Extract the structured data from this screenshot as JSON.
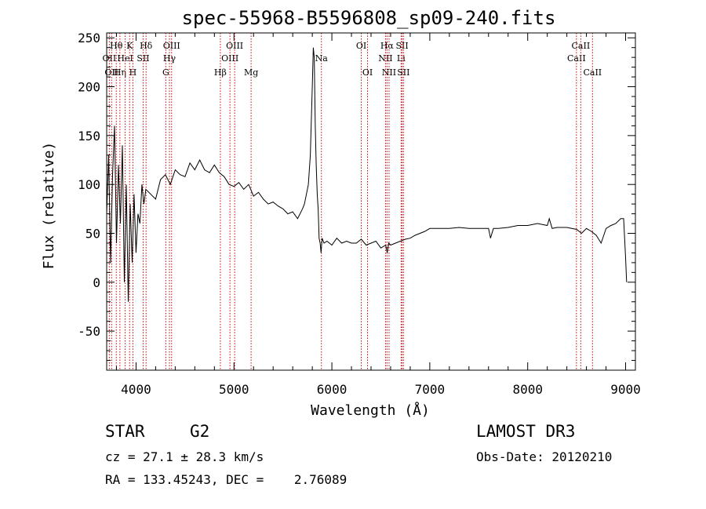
{
  "chart_data": {
    "type": "line",
    "title": "spec-55968-B5596808_sp09-240.fits",
    "xlabel": "Wavelength (Å)",
    "ylabel": "Flux (relative)",
    "xlim": [
      3700,
      9100
    ],
    "ylim": [
      -90,
      255
    ],
    "xticks": [
      4000,
      5000,
      6000,
      7000,
      8000,
      9000
    ],
    "yticks": [
      -50,
      0,
      50,
      100,
      150,
      200,
      250
    ],
    "grid": false,
    "legend": "none",
    "line_color": "#000000",
    "marker_color": "#cc0000",
    "series": [
      {
        "x": [
          3700,
          3720,
          3740,
          3760,
          3780,
          3800,
          3820,
          3840,
          3860,
          3880,
          3900,
          3920,
          3940,
          3960,
          3980,
          4000,
          4020,
          4040,
          4060,
          4080,
          4100,
          4150,
          4200,
          4250,
          4300,
          4350,
          4400,
          4450,
          4500,
          4550,
          4600,
          4650,
          4700,
          4750,
          4800,
          4850,
          4900,
          4950,
          5000,
          5050,
          5100,
          5150,
          5200,
          5250,
          5300,
          5350,
          5400,
          5450,
          5500,
          5550,
          5600,
          5650,
          5700,
          5720,
          5740,
          5760,
          5780,
          5800,
          5810,
          5820,
          5830,
          5840,
          5850,
          5860,
          5870,
          5880,
          5890,
          5900,
          5920,
          5950,
          6000,
          6050,
          6100,
          6150,
          6200,
          6250,
          6300,
          6350,
          6400,
          6450,
          6500,
          6550,
          6565,
          6580,
          6600,
          6650,
          6700,
          6750,
          6800,
          6850,
          6900,
          6950,
          7000,
          7100,
          7200,
          7300,
          7400,
          7500,
          7600,
          7620,
          7650,
          7700,
          7800,
          7900,
          8000,
          8100,
          8200,
          8220,
          8250,
          8300,
          8400,
          8500,
          8550,
          8600,
          8650,
          8700,
          8750,
          8800,
          8850,
          8900,
          8950,
          8980,
          9000,
          9010
        ],
        "y": [
          70,
          130,
          20,
          110,
          160,
          40,
          120,
          60,
          140,
          0,
          100,
          -20,
          80,
          20,
          90,
          30,
          70,
          60,
          100,
          80,
          95,
          90,
          85,
          105,
          110,
          100,
          115,
          110,
          108,
          122,
          115,
          125,
          115,
          112,
          120,
          112,
          108,
          100,
          98,
          102,
          95,
          100,
          88,
          92,
          85,
          80,
          82,
          78,
          75,
          70,
          72,
          65,
          75,
          80,
          90,
          100,
          130,
          200,
          240,
          230,
          160,
          120,
          90,
          75,
          45,
          40,
          30,
          45,
          40,
          42,
          38,
          45,
          40,
          42,
          40,
          40,
          44,
          38,
          40,
          42,
          35,
          38,
          30,
          40,
          38,
          40,
          42,
          44,
          45,
          48,
          50,
          52,
          55,
          55,
          55,
          56,
          55,
          55,
          55,
          45,
          55,
          55,
          56,
          58,
          58,
          60,
          58,
          65,
          55,
          56,
          56,
          54,
          50,
          55,
          52,
          48,
          40,
          55,
          58,
          60,
          65,
          65,
          25,
          0
        ],
        "line_markers": [
          {
            "wavelength": 3727,
            "label": "OII",
            "row": 2
          },
          {
            "wavelength": 3750,
            "label": "OII",
            "row": 3
          },
          {
            "wavelength": 3798,
            "label": "Hθ",
            "row": 1
          },
          {
            "wavelength": 3835,
            "label": "Hη",
            "row": 3
          },
          {
            "wavelength": 3889,
            "label": "HeI",
            "row": 2
          },
          {
            "wavelength": 3934,
            "label": "K",
            "row": 1
          },
          {
            "wavelength": 3968,
            "label": "H",
            "row": 3
          },
          {
            "wavelength": 4072,
            "label": "SII",
            "row": 2
          },
          {
            "wavelength": 4102,
            "label": "Hδ",
            "row": 1
          },
          {
            "wavelength": 4304,
            "label": "G",
            "row": 3
          },
          {
            "wavelength": 4341,
            "label": "Hγ",
            "row": 2
          },
          {
            "wavelength": 4363,
            "label": "OIII",
            "row": 1
          },
          {
            "wavelength": 4861,
            "label": "Hβ",
            "row": 3
          },
          {
            "wavelength": 4959,
            "label": "OIII",
            "row": 2
          },
          {
            "wavelength": 5007,
            "label": "OIII",
            "row": 1
          },
          {
            "wavelength": 5175,
            "label": "Mg",
            "row": 3
          },
          {
            "wavelength": 5893,
            "label": "Na",
            "row": 2
          },
          {
            "wavelength": 6300,
            "label": "OI",
            "row": 1
          },
          {
            "wavelength": 6364,
            "label": "OI",
            "row": 3
          },
          {
            "wavelength": 6548,
            "label": "NII",
            "row": 2
          },
          {
            "wavelength": 6563,
            "label": "Hα",
            "row": 1
          },
          {
            "wavelength": 6584,
            "label": "NII",
            "row": 3
          },
          {
            "wavelength": 6707,
            "label": "Li",
            "row": 2
          },
          {
            "wavelength": 6717,
            "label": "SII",
            "row": 1
          },
          {
            "wavelength": 6731,
            "label": "SII",
            "row": 3
          },
          {
            "wavelength": 8498,
            "label": "CaII",
            "row": 2
          },
          {
            "wavelength": 8542,
            "label": "CaII",
            "row": 1
          },
          {
            "wavelength": 8662,
            "label": "CaII",
            "row": 3
          }
        ]
      }
    ]
  },
  "info": {
    "object_class": "STAR",
    "subclass": "G2",
    "survey": "LAMOST DR3",
    "cz_line": "cz = 27.1 ± 28.3 km/s",
    "obs_date_line": "Obs-Date: 20120210",
    "coords_line": "RA = 133.45243, DEC =    2.76089"
  }
}
